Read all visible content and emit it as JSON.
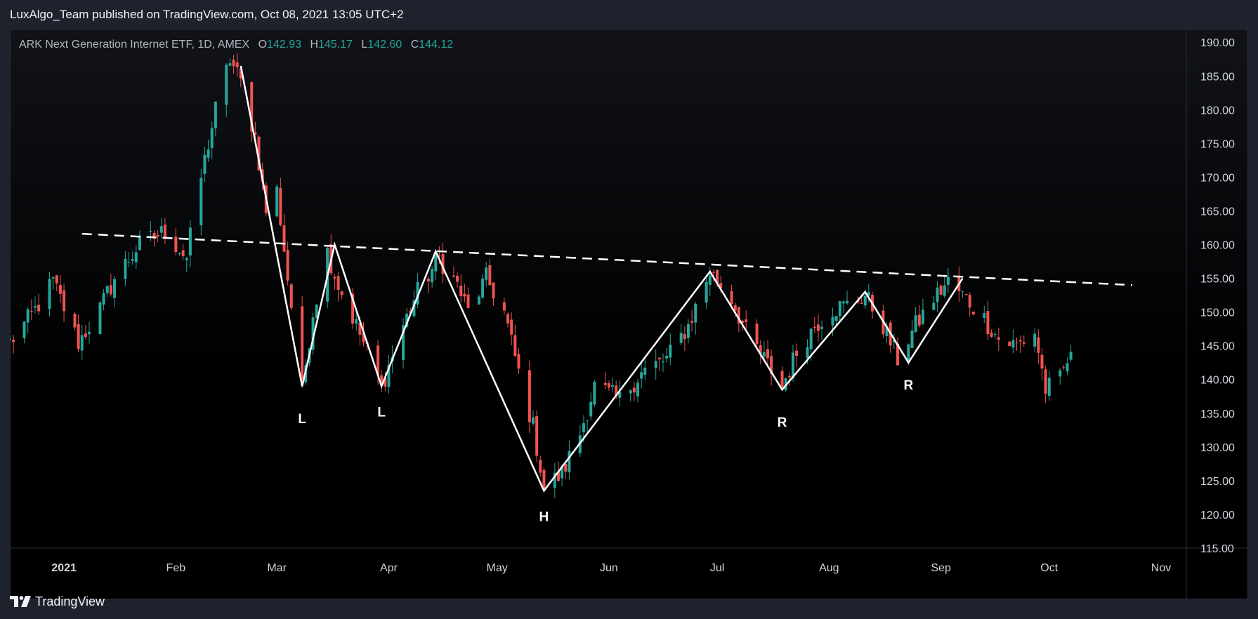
{
  "header": {
    "published": "LuxAlgo_Team published on TradingView.com, Oct 08, 2021 13:05 UTC+2"
  },
  "legend": {
    "symbol": "ARK Next Generation Internet ETF, 1D, AMEX",
    "open_label": "O",
    "open": "142.93",
    "high_label": "H",
    "high": "145.17",
    "low_label": "L",
    "low": "142.60",
    "close_label": "C",
    "close": "144.12"
  },
  "footer": {
    "brand": "TradingView"
  },
  "colors": {
    "up": "#26a69a",
    "down": "#ef5350",
    "pattern_line": "#ffffff",
    "axis_text": "#d1d4dc",
    "background": "#000000"
  },
  "chart_data": {
    "type": "candlestick",
    "title": "ARK Next Generation Internet ETF, 1D, AMEX",
    "ylim": [
      115,
      192
    ],
    "y_ticks": [
      "190.00",
      "185.00",
      "180.00",
      "175.00",
      "170.00",
      "165.00",
      "160.00",
      "155.00",
      "150.00",
      "145.00",
      "140.00",
      "135.00",
      "130.00",
      "125.00",
      "120.00",
      "115.00"
    ],
    "x_range": [
      "2020-12-17",
      "2021-11-08"
    ],
    "x_ticks": [
      {
        "label": "2021",
        "date": "2021-01-01"
      },
      {
        "label": "Feb",
        "date": "2021-02-01"
      },
      {
        "label": "Mar",
        "date": "2021-03-01"
      },
      {
        "label": "Apr",
        "date": "2021-04-01"
      },
      {
        "label": "May",
        "date": "2021-05-01"
      },
      {
        "label": "Jun",
        "date": "2021-06-01"
      },
      {
        "label": "Jul",
        "date": "2021-07-01"
      },
      {
        "label": "Aug",
        "date": "2021-08-01"
      },
      {
        "label": "Sep",
        "date": "2021-09-01"
      },
      {
        "label": "Oct",
        "date": "2021-10-01"
      },
      {
        "label": "Nov",
        "date": "2021-11-01"
      }
    ],
    "close_path": [
      [
        "2020-12-17",
        145.5
      ],
      [
        "2020-12-23",
        149.5
      ],
      [
        "2020-12-29",
        154.5
      ],
      [
        "2021-01-05",
        145.5
      ],
      [
        "2021-01-11",
        150.5
      ],
      [
        "2021-01-15",
        155.0
      ],
      [
        "2021-01-22",
        160.0
      ],
      [
        "2021-01-29",
        162.0
      ],
      [
        "2021-02-04",
        158.0
      ],
      [
        "2021-02-08",
        170.0
      ],
      [
        "2021-02-12",
        180.0
      ],
      [
        "2021-02-16",
        187.5
      ],
      [
        "2021-02-19",
        184.0
      ],
      [
        "2021-02-23",
        176.0
      ],
      [
        "2021-02-26",
        165.0
      ],
      [
        "2021-03-01",
        168.0
      ],
      [
        "2021-03-04",
        155.0
      ],
      [
        "2021-03-08",
        138.5
      ],
      [
        "2021-03-11",
        150.0
      ],
      [
        "2021-03-15",
        159.0
      ],
      [
        "2021-03-18",
        154.0
      ],
      [
        "2021-03-23",
        148.0
      ],
      [
        "2021-03-30",
        139.0
      ],
      [
        "2021-04-05",
        148.0
      ],
      [
        "2021-04-09",
        153.0
      ],
      [
        "2021-04-15",
        158.0
      ],
      [
        "2021-04-20",
        154.0
      ],
      [
        "2021-04-23",
        150.0
      ],
      [
        "2021-04-28",
        155.0
      ],
      [
        "2021-05-03",
        150.0
      ],
      [
        "2021-05-07",
        141.0
      ],
      [
        "2021-05-11",
        133.0
      ],
      [
        "2021-05-14",
        124.0
      ],
      [
        "2021-05-19",
        126.0
      ],
      [
        "2021-05-24",
        132.0
      ],
      [
        "2021-05-28",
        139.0
      ],
      [
        "2021-06-04",
        137.0
      ],
      [
        "2021-06-10",
        141.0
      ],
      [
        "2021-06-17",
        143.0
      ],
      [
        "2021-06-23",
        148.0
      ],
      [
        "2021-06-29",
        156.0
      ],
      [
        "2021-07-05",
        152.0
      ],
      [
        "2021-07-09",
        147.0
      ],
      [
        "2021-07-14",
        143.0
      ],
      [
        "2021-07-19",
        139.0
      ],
      [
        "2021-07-23",
        144.0
      ],
      [
        "2021-07-28",
        148.0
      ],
      [
        "2021-08-02",
        150.5
      ],
      [
        "2021-08-06",
        151.0
      ],
      [
        "2021-08-11",
        152.5
      ],
      [
        "2021-08-16",
        148.0
      ],
      [
        "2021-08-20",
        143.0
      ],
      [
        "2021-08-25",
        148.0
      ],
      [
        "2021-08-30",
        152.0
      ],
      [
        "2021-09-03",
        154.5
      ],
      [
        "2021-09-08",
        152.0
      ],
      [
        "2021-09-13",
        149.0
      ],
      [
        "2021-09-17",
        146.0
      ],
      [
        "2021-09-22",
        145.0
      ],
      [
        "2021-09-27",
        147.0
      ],
      [
        "2021-09-30",
        138.5
      ],
      [
        "2021-10-04",
        140.0
      ],
      [
        "2021-10-07",
        144.12
      ]
    ],
    "pattern_zigzag": [
      [
        "2021-02-19",
        186.5
      ],
      [
        "2021-03-08",
        139.0
      ],
      [
        "2021-03-17",
        160.0
      ],
      [
        "2021-03-30",
        139.0
      ],
      [
        "2021-04-14",
        159.0
      ],
      [
        "2021-05-14",
        123.5
      ],
      [
        "2021-06-29",
        156.0
      ],
      [
        "2021-07-19",
        138.5
      ],
      [
        "2021-08-11",
        153.0
      ],
      [
        "2021-08-23",
        142.5
      ],
      [
        "2021-09-07",
        155.0
      ]
    ],
    "neckline": [
      [
        "2021-01-06",
        161.6
      ],
      [
        "2021-10-24",
        154.0
      ]
    ],
    "pattern_labels": [
      {
        "text": "L",
        "date": "2021-03-08",
        "price": 133.5
      },
      {
        "text": "L",
        "date": "2021-03-30",
        "price": 134.5
      },
      {
        "text": "H",
        "date": "2021-05-14",
        "price": 119.0
      },
      {
        "text": "R",
        "date": "2021-07-19",
        "price": 133.0
      },
      {
        "text": "R",
        "date": "2021-08-23",
        "price": 138.5
      }
    ]
  }
}
